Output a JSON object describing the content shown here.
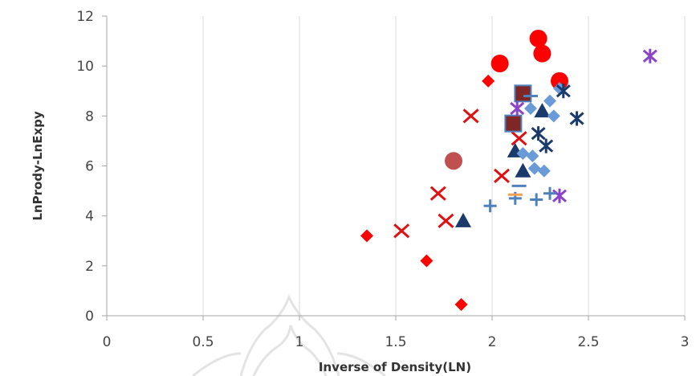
{
  "chart_data": {
    "type": "scatter",
    "title": "",
    "xlabel": "Inverse of Density(LN)",
    "ylabel": "LnPrody-LnExpy",
    "xlim": [
      0,
      3
    ],
    "ylim": [
      0,
      12
    ],
    "x_ticks": [
      "0",
      "0.5",
      "1",
      "1.5",
      "2",
      "2.5",
      "3"
    ],
    "y_ticks": [
      "0",
      "2",
      "4",
      "6",
      "8",
      "10",
      "12"
    ],
    "grid": "vertical",
    "legend": "none",
    "series": [
      {
        "marker": "diamond",
        "color": "#ff0000",
        "points": [
          [
            1.35,
            3.2
          ],
          [
            1.66,
            2.2
          ],
          [
            1.84,
            0.45
          ],
          [
            1.98,
            9.4
          ]
        ]
      },
      {
        "marker": "circle",
        "color": "#ff0000",
        "points": [
          [
            2.04,
            10.1
          ],
          [
            2.24,
            11.1
          ],
          [
            2.26,
            10.5
          ],
          [
            2.35,
            9.4
          ]
        ]
      },
      {
        "marker": "circle",
        "color": "#c05050",
        "points": [
          [
            1.8,
            6.2
          ]
        ]
      },
      {
        "marker": "x",
        "color": "#e01010",
        "points": [
          [
            1.53,
            3.4
          ],
          [
            1.72,
            4.9
          ],
          [
            1.76,
            3.8
          ],
          [
            1.89,
            8.0
          ],
          [
            2.05,
            5.6
          ],
          [
            2.14,
            7.1
          ]
        ]
      },
      {
        "marker": "square",
        "color": "#7f2727",
        "points": [
          [
            2.11,
            7.7
          ],
          [
            2.16,
            8.9
          ]
        ]
      },
      {
        "marker": "triangle",
        "color": "#1a3a6b",
        "points": [
          [
            1.85,
            3.8
          ],
          [
            2.12,
            6.6
          ],
          [
            2.16,
            5.8
          ],
          [
            2.26,
            8.2
          ]
        ]
      },
      {
        "marker": "diamond",
        "color": "#6a9bd8",
        "points": [
          [
            2.16,
            6.5
          ],
          [
            2.21,
            6.4
          ],
          [
            2.22,
            5.9
          ],
          [
            2.27,
            5.8
          ],
          [
            2.3,
            8.6
          ],
          [
            2.32,
            8.0
          ],
          [
            2.35,
            9.1
          ],
          [
            2.2,
            8.3
          ]
        ]
      },
      {
        "marker": "asterisk",
        "color": "#1a3a6b",
        "points": [
          [
            2.24,
            7.3
          ],
          [
            2.28,
            6.8
          ],
          [
            2.37,
            9.0
          ],
          [
            2.44,
            7.9
          ]
        ]
      },
      {
        "marker": "asterisk",
        "color": "#8b44c7",
        "points": [
          [
            2.13,
            8.3
          ],
          [
            2.35,
            4.8
          ],
          [
            2.82,
            10.4
          ]
        ]
      },
      {
        "marker": "plus",
        "color": "#4f81bd",
        "points": [
          [
            1.99,
            4.4
          ],
          [
            2.12,
            4.7
          ],
          [
            2.23,
            4.65
          ],
          [
            2.3,
            4.9
          ]
        ]
      },
      {
        "marker": "dash",
        "color": "#4f81bd",
        "points": [
          [
            2.14,
            5.2
          ],
          [
            2.2,
            8.8
          ]
        ]
      },
      {
        "marker": "dash",
        "color": "#f0a050",
        "points": [
          [
            2.12,
            4.85
          ]
        ]
      }
    ]
  }
}
